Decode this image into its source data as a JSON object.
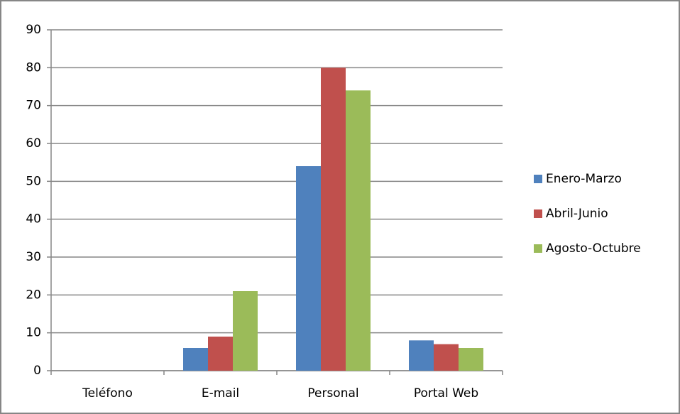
{
  "chart_data": {
    "type": "bar",
    "categories": [
      "Teléfono",
      "E-mail",
      "Personal",
      "Portal Web"
    ],
    "series": [
      {
        "name": "Enero-Marzo",
        "color": "#4f81bd",
        "values": [
          0,
          6,
          54,
          8
        ]
      },
      {
        "name": "Abril-Junio",
        "color": "#c0504d",
        "values": [
          0,
          9,
          80,
          7
        ]
      },
      {
        "name": "Agosto-Octubre",
        "color": "#9bbb59",
        "values": [
          0,
          21,
          74,
          6
        ]
      }
    ],
    "ylim": [
      0,
      90
    ],
    "yticks": [
      0,
      10,
      20,
      30,
      40,
      50,
      60,
      70,
      80,
      90
    ],
    "grid": true,
    "legend": "right"
  }
}
